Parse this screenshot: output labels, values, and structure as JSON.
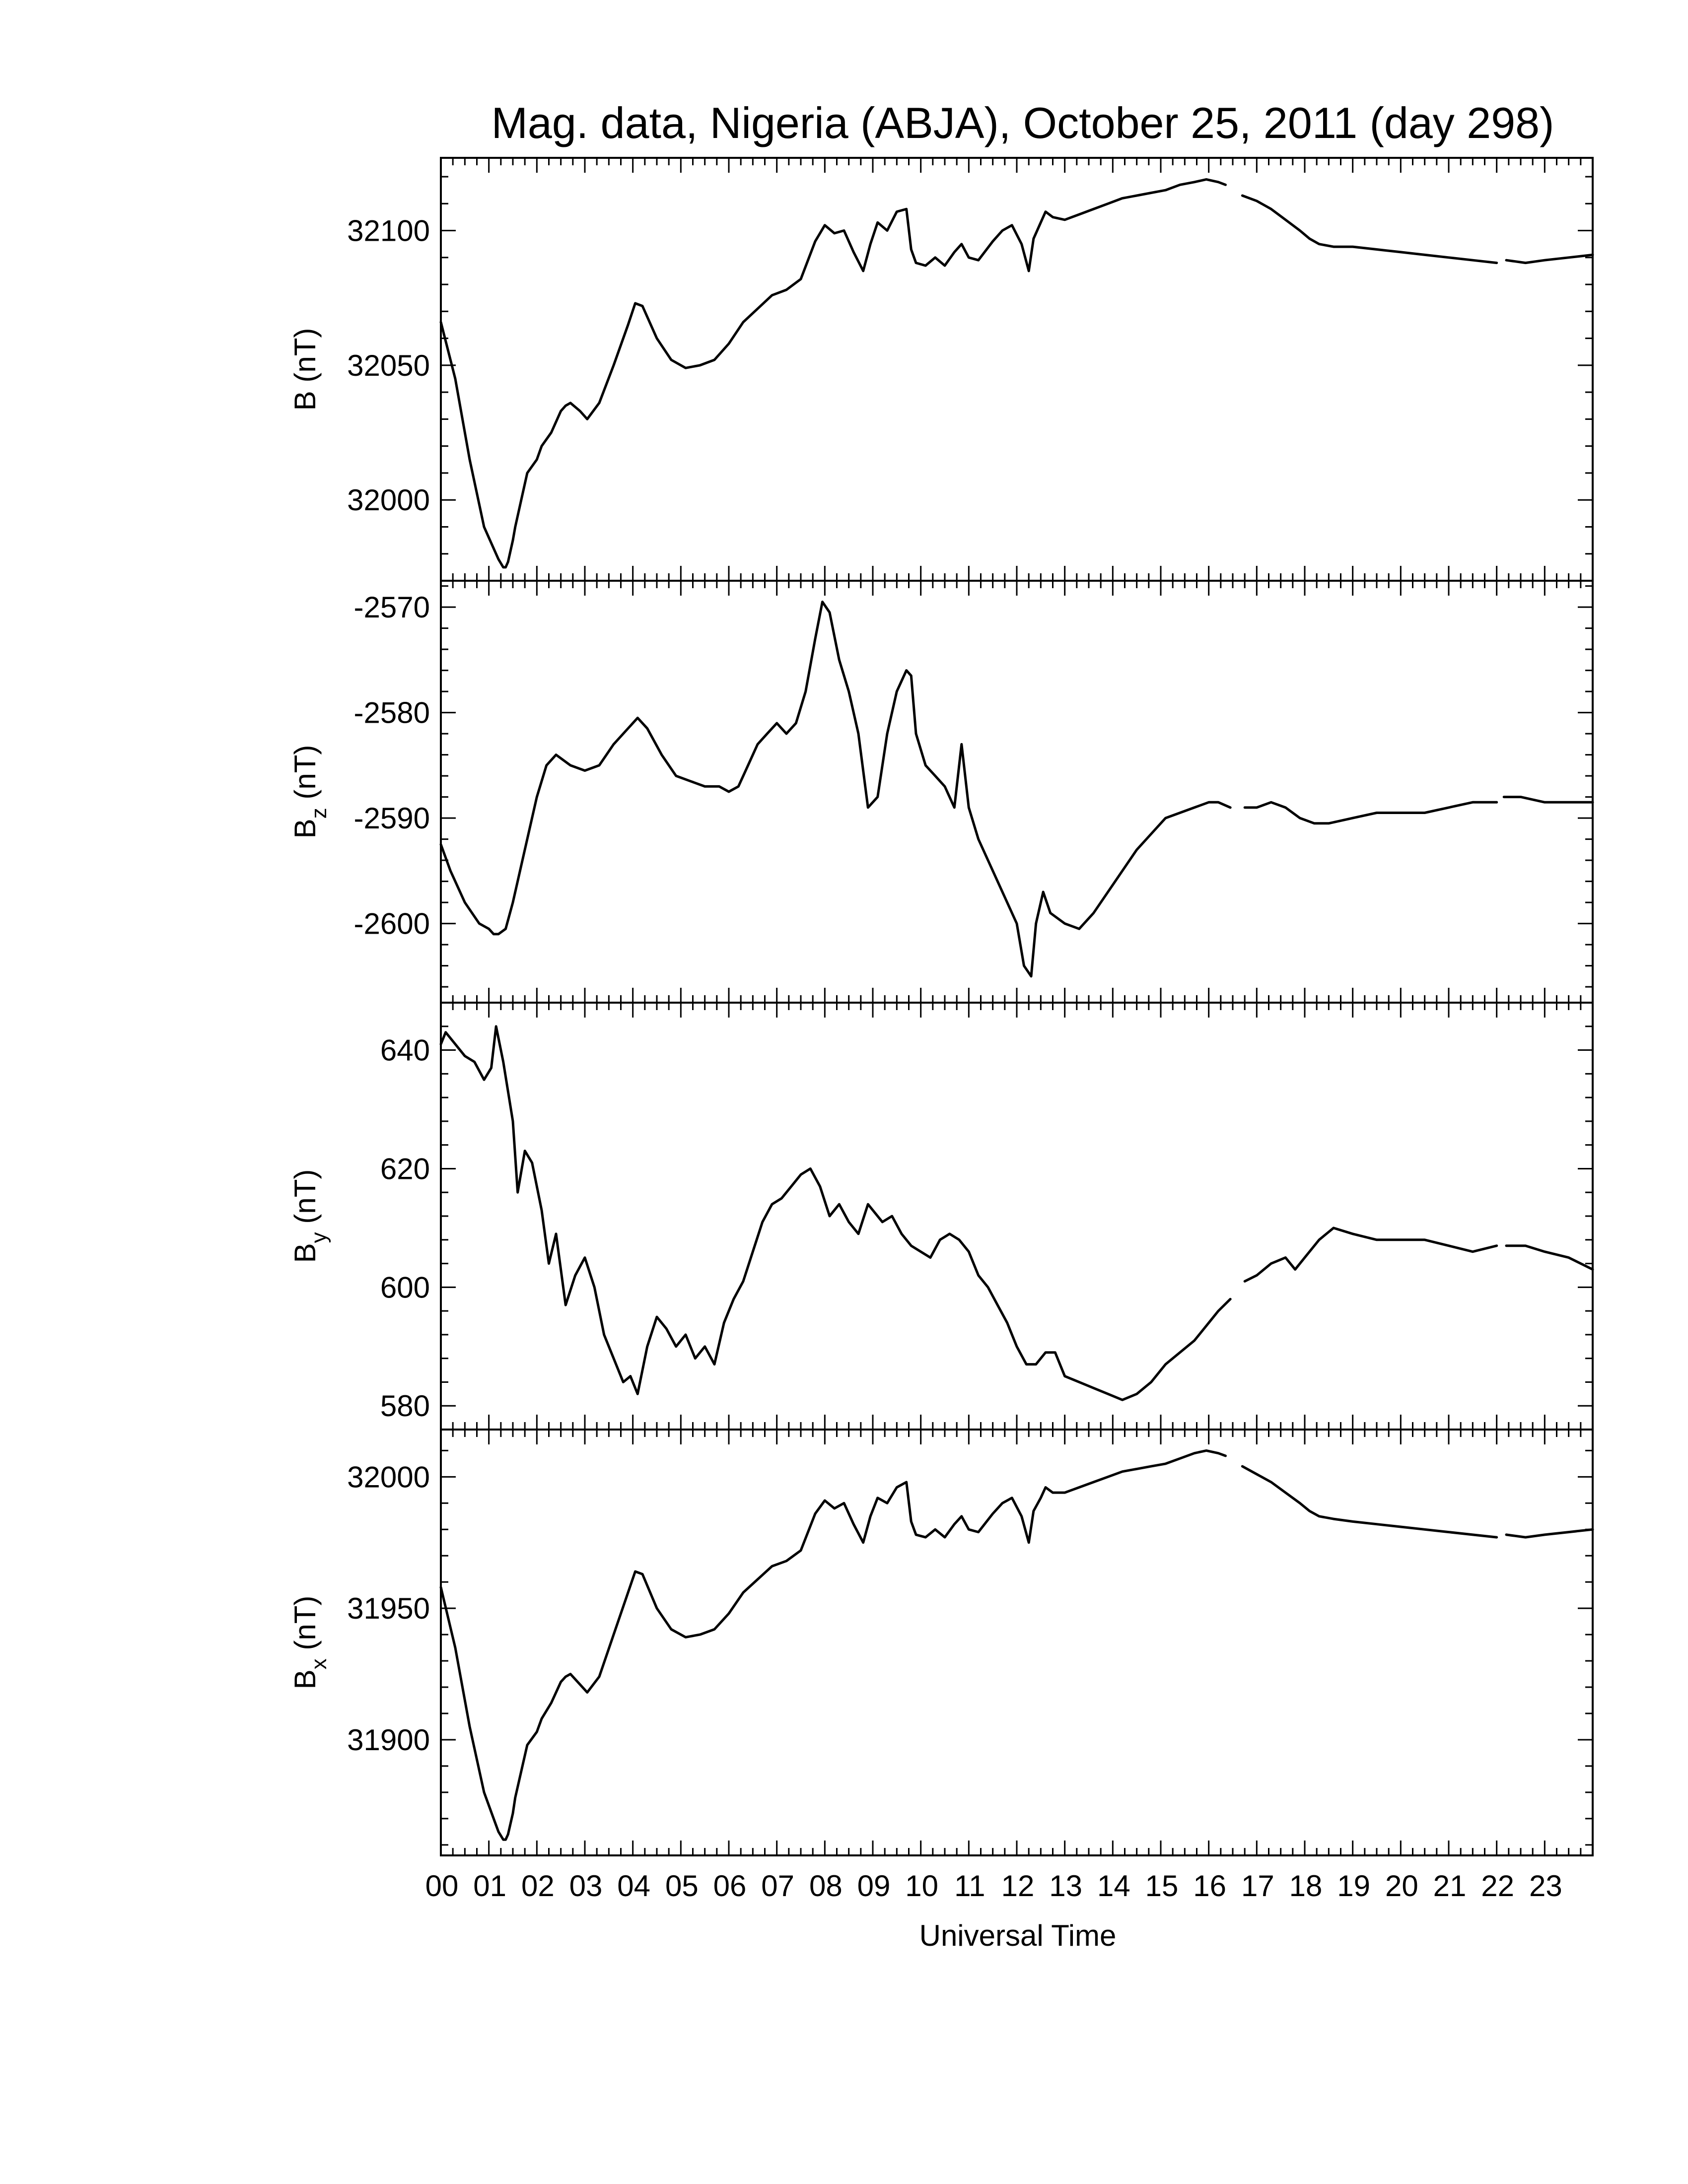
{
  "title": "Mag. data, Nigeria (ABJA), October 25, 2011 (day 298)",
  "xlabel": "Universal Time",
  "xticks": [
    "00",
    "01",
    "02",
    "03",
    "04",
    "05",
    "06",
    "07",
    "08",
    "09",
    "10",
    "11",
    "12",
    "13",
    "14",
    "15",
    "16",
    "17",
    "18",
    "19",
    "20",
    "21",
    "22",
    "23"
  ],
  "chart_data": [
    {
      "type": "line",
      "ylabel": "B (nT)",
      "ylabel_base": "B",
      "ylabel_sub": "",
      "ylabel_unit": " (nT)",
      "ylim": [
        31970,
        32127
      ],
      "yticks": [
        32000,
        32050,
        32100
      ],
      "gaps": [
        [
          16.35,
          16.7
        ],
        [
          22.0,
          22.2
        ]
      ],
      "x": [
        0,
        0.3,
        0.6,
        0.9,
        1.1,
        1.2,
        1.3,
        1.35,
        1.4,
        1.5,
        1.55,
        1.7,
        1.8,
        2.0,
        2.1,
        2.3,
        2.5,
        2.6,
        2.7,
        2.9,
        3.05,
        3.3,
        3.6,
        3.9,
        4.05,
        4.2,
        4.5,
        4.8,
        5.1,
        5.4,
        5.7,
        6.0,
        6.3,
        6.6,
        6.9,
        7.2,
        7.5,
        7.8,
        8.0,
        8.2,
        8.4,
        8.6,
        8.8,
        8.95,
        9.1,
        9.3,
        9.5,
        9.7,
        9.8,
        9.9,
        10.1,
        10.3,
        10.5,
        10.7,
        10.85,
        11.0,
        11.2,
        11.5,
        11.7,
        11.9,
        12.1,
        12.25,
        12.35,
        12.5,
        12.6,
        12.75,
        13.0,
        13.3,
        13.6,
        13.9,
        14.2,
        14.5,
        14.8,
        15.1,
        15.4,
        15.7,
        15.95,
        16.2,
        16.35,
        16.7,
        17.0,
        17.3,
        17.6,
        17.9,
        18.1,
        18.3,
        18.6,
        19.0,
        19.5,
        20.0,
        20.5,
        21.0,
        21.5,
        22.0,
        22.2,
        22.6,
        23.0,
        23.5,
        24.0
      ],
      "values": [
        32066,
        32045,
        32015,
        31990,
        31982,
        31978,
        31975,
        31975,
        31977,
        31985,
        31990,
        32002,
        32010,
        32015,
        32020,
        32025,
        32033,
        32035,
        32036,
        32033,
        32030,
        32036,
        32050,
        32065,
        32073,
        32072,
        32060,
        32052,
        32049,
        32050,
        32052,
        32058,
        32066,
        32071,
        32076,
        32078,
        32082,
        32096,
        32102,
        32099,
        32100,
        32092,
        32085,
        32095,
        32103,
        32100,
        32107,
        32108,
        32093,
        32088,
        32087,
        32090,
        32087,
        32092,
        32095,
        32090,
        32089,
        32096,
        32100,
        32102,
        32095,
        32085,
        32097,
        32103,
        32107,
        32105,
        32104,
        32106,
        32108,
        32110,
        32112,
        32113,
        32114,
        32115,
        32117,
        32118,
        32119,
        32118,
        32117,
        32113,
        32111,
        32108,
        32104,
        32100,
        32097,
        32095,
        32094,
        32094,
        32093,
        32092,
        32091,
        32090,
        32089,
        32088,
        32089,
        32088,
        32089,
        32090,
        32091
      ]
    },
    {
      "type": "line",
      "ylabel": "Bz (nT)",
      "ylabel_base": "B",
      "ylabel_sub": "z",
      "ylabel_unit": " (nT)",
      "ylim": [
        -2607.5,
        -2567.5
      ],
      "yticks": [
        -2600,
        -2590,
        -2580,
        -2570
      ],
      "gaps": [
        [
          16.45,
          16.75
        ],
        [
          22.0,
          22.15
        ]
      ],
      "x": [
        0,
        0.2,
        0.5,
        0.8,
        1.0,
        1.1,
        1.2,
        1.35,
        1.5,
        1.7,
        2.0,
        2.2,
        2.4,
        2.7,
        3.0,
        3.3,
        3.6,
        3.9,
        4.1,
        4.3,
        4.6,
        4.9,
        5.2,
        5.5,
        5.8,
        6.0,
        6.2,
        6.4,
        6.6,
        6.8,
        7.0,
        7.2,
        7.4,
        7.6,
        7.8,
        7.95,
        8.1,
        8.3,
        8.5,
        8.7,
        8.9,
        9.1,
        9.3,
        9.5,
        9.7,
        9.8,
        9.9,
        10.1,
        10.3,
        10.5,
        10.7,
        10.85,
        11.0,
        11.2,
        11.5,
        11.8,
        12.0,
        12.15,
        12.3,
        12.4,
        12.55,
        12.7,
        13.0,
        13.3,
        13.6,
        13.9,
        14.2,
        14.5,
        14.8,
        15.1,
        15.4,
        15.7,
        16.0,
        16.2,
        16.45,
        16.75,
        17.0,
        17.3,
        17.6,
        17.9,
        18.2,
        18.5,
        19.0,
        19.5,
        20.0,
        20.5,
        21.0,
        21.5,
        22.0,
        22.15,
        22.5,
        23.0,
        23.5,
        24.0
      ],
      "values": [
        -2592.5,
        -2595,
        -2598,
        -2600,
        -2600.5,
        -2601,
        -2601,
        -2600.5,
        -2598,
        -2594,
        -2588,
        -2585,
        -2584,
        -2585,
        -2585.5,
        -2585,
        -2583,
        -2581.5,
        -2580.5,
        -2581.5,
        -2584,
        -2586,
        -2586.5,
        -2587,
        -2587,
        -2587.5,
        -2587,
        -2585,
        -2583,
        -2582,
        -2581,
        -2582,
        -2581,
        -2578,
        -2573,
        -2569.5,
        -2570.5,
        -2575,
        -2578,
        -2582,
        -2589,
        -2588,
        -2582,
        -2578,
        -2576,
        -2576.5,
        -2582,
        -2585,
        -2586,
        -2587,
        -2589,
        -2583,
        -2589,
        -2592,
        -2595,
        -2598,
        -2600,
        -2604,
        -2605,
        -2600,
        -2597,
        -2599,
        -2600,
        -2600.5,
        -2599,
        -2597,
        -2595,
        -2593,
        -2591.5,
        -2590,
        -2589.5,
        -2589,
        -2588.5,
        -2588.5,
        -2589,
        -2589,
        -2589,
        -2588.5,
        -2589,
        -2590,
        -2590.5,
        -2590.5,
        -2590,
        -2589.5,
        -2589.5,
        -2589.5,
        -2589,
        -2588.5,
        -2588.5,
        -2588,
        -2588,
        -2588.5,
        -2588.5,
        -2588.5
      ]
    },
    {
      "type": "line",
      "ylabel": "By (nT)",
      "ylabel_base": "B",
      "ylabel_sub": "y",
      "ylabel_unit": " (nT)",
      "ylim": [
        576,
        648
      ],
      "yticks": [
        580,
        600,
        620,
        640
      ],
      "gaps": [
        [
          16.45,
          16.75
        ],
        [
          22.0,
          22.2
        ]
      ],
      "x": [
        0,
        0.1,
        0.3,
        0.5,
        0.7,
        0.9,
        1.05,
        1.15,
        1.3,
        1.5,
        1.6,
        1.75,
        1.9,
        2.1,
        2.25,
        2.4,
        2.6,
        2.8,
        3.0,
        3.2,
        3.4,
        3.6,
        3.8,
        3.95,
        4.1,
        4.3,
        4.5,
        4.7,
        4.9,
        5.1,
        5.3,
        5.5,
        5.7,
        5.9,
        6.1,
        6.3,
        6.5,
        6.7,
        6.9,
        7.1,
        7.3,
        7.5,
        7.7,
        7.9,
        8.1,
        8.3,
        8.5,
        8.7,
        8.9,
        9.0,
        9.2,
        9.4,
        9.6,
        9.8,
        10.0,
        10.2,
        10.4,
        10.6,
        10.8,
        11.0,
        11.2,
        11.4,
        11.6,
        11.8,
        12.0,
        12.2,
        12.4,
        12.6,
        12.8,
        13.0,
        13.3,
        13.6,
        13.9,
        14.2,
        14.5,
        14.8,
        15.1,
        15.4,
        15.7,
        16.0,
        16.2,
        16.45,
        16.75,
        17.0,
        17.3,
        17.6,
        17.8,
        18.0,
        18.3,
        18.6,
        19.0,
        19.5,
        20.0,
        20.5,
        21.0,
        21.5,
        22.0,
        22.2,
        22.6,
        23.0,
        23.5,
        24.0
      ],
      "values": [
        641,
        643,
        641,
        639,
        638,
        635,
        637,
        644,
        638,
        628,
        616,
        623,
        621,
        613,
        604,
        609,
        597,
        602,
        605,
        600,
        592,
        588,
        584,
        585,
        582,
        590,
        595,
        593,
        590,
        592,
        588,
        590,
        587,
        594,
        598,
        601,
        606,
        611,
        614,
        615,
        617,
        619,
        620,
        617,
        612,
        614,
        611,
        609,
        614,
        613,
        611,
        612,
        609,
        607,
        606,
        605,
        608,
        609,
        608,
        606,
        602,
        600,
        597,
        594,
        590,
        587,
        587,
        589,
        589,
        585,
        584,
        583,
        582,
        581,
        582,
        584,
        587,
        589,
        591,
        594,
        596,
        598,
        601,
        602,
        604,
        605,
        603,
        605,
        608,
        610,
        609,
        608,
        608,
        608,
        607,
        606,
        607,
        607,
        607,
        606,
        605,
        603
      ]
    },
    {
      "type": "line",
      "ylabel": "Bx (nT)",
      "ylabel_base": "B",
      "ylabel_sub": "x",
      "ylabel_unit": " (nT)",
      "ylim": [
        31856,
        32018
      ],
      "yticks": [
        31900,
        31950,
        32000
      ],
      "gaps": [
        [
          16.35,
          16.7
        ],
        [
          22.0,
          22.2
        ]
      ],
      "x": [
        0,
        0.3,
        0.6,
        0.9,
        1.1,
        1.2,
        1.3,
        1.35,
        1.4,
        1.5,
        1.55,
        1.7,
        1.8,
        2.0,
        2.1,
        2.3,
        2.5,
        2.6,
        2.7,
        2.9,
        3.05,
        3.3,
        3.6,
        3.9,
        4.05,
        4.2,
        4.5,
        4.8,
        5.1,
        5.4,
        5.7,
        6.0,
        6.3,
        6.6,
        6.9,
        7.2,
        7.5,
        7.8,
        8.0,
        8.2,
        8.4,
        8.6,
        8.8,
        8.95,
        9.1,
        9.3,
        9.5,
        9.7,
        9.8,
        9.9,
        10.1,
        10.3,
        10.5,
        10.7,
        10.85,
        11.0,
        11.2,
        11.5,
        11.7,
        11.9,
        12.1,
        12.25,
        12.35,
        12.5,
        12.6,
        12.75,
        13.0,
        13.3,
        13.6,
        13.9,
        14.2,
        14.5,
        14.8,
        15.1,
        15.4,
        15.7,
        15.95,
        16.2,
        16.35,
        16.7,
        17.0,
        17.3,
        17.6,
        17.9,
        18.1,
        18.3,
        18.6,
        19.0,
        19.5,
        20.0,
        20.5,
        21.0,
        21.5,
        22.0,
        22.2,
        22.6,
        23.0,
        23.5,
        24.0
      ],
      "values": [
        31958,
        31935,
        31905,
        31880,
        31870,
        31865,
        31862,
        31862,
        31864,
        31872,
        31878,
        31890,
        31898,
        31903,
        31908,
        31914,
        31922,
        31924,
        31925,
        31921,
        31918,
        31924,
        31940,
        31956,
        31964,
        31963,
        31950,
        31942,
        31939,
        31940,
        31942,
        31948,
        31956,
        31961,
        31966,
        31968,
        31972,
        31986,
        31991,
        31988,
        31990,
        31982,
        31975,
        31985,
        31992,
        31990,
        31996,
        31998,
        31983,
        31978,
        31977,
        31980,
        31977,
        31982,
        31985,
        31980,
        31979,
        31986,
        31990,
        31992,
        31985,
        31975,
        31987,
        31992,
        31996,
        31994,
        31994,
        31996,
        31998,
        32000,
        32002,
        32003,
        32004,
        32005,
        32007,
        32009,
        32010,
        32009,
        32008,
        32004,
        32001,
        31998,
        31994,
        31990,
        31987,
        31985,
        31984,
        31983,
        31982,
        31981,
        31980,
        31979,
        31978,
        31977,
        31978,
        31977,
        31978,
        31979,
        31980
      ]
    }
  ]
}
